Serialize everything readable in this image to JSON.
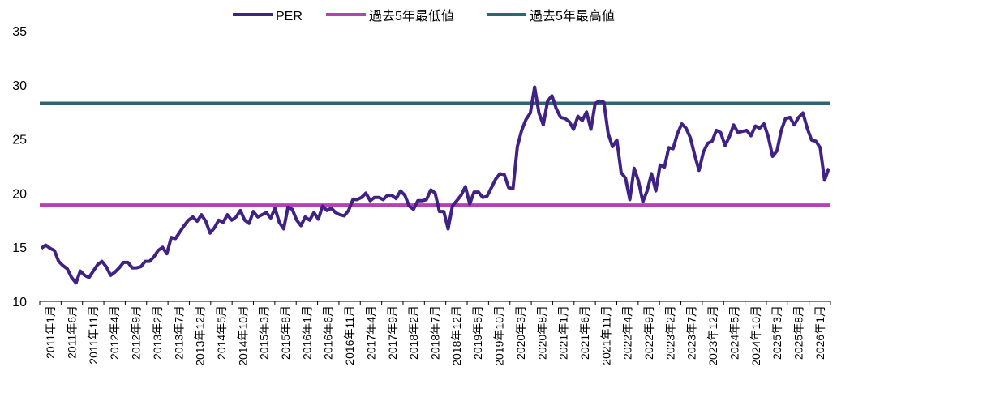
{
  "chart_data": {
    "type": "line",
    "title": "",
    "xlabel": "",
    "ylabel": "",
    "ylim": [
      10,
      35
    ],
    "yticks": [
      10,
      15,
      20,
      25,
      30,
      35
    ],
    "grid": false,
    "legend_position": "top",
    "x_tick_labels": [
      "2011年1月",
      "2011年6月",
      "2011年11月",
      "2012年4月",
      "2012年9月",
      "2013年2月",
      "2013年7月",
      "2013年12月",
      "2014年5月",
      "2014年10月",
      "2015年3月",
      "2015年8月",
      "2016年1月",
      "2016年6月",
      "2016年11月",
      "2017年4月",
      "2017年9月",
      "2018年2月",
      "2018年7月",
      "2018年12月",
      "2019年5月",
      "2019年10月",
      "2020年3月",
      "2020年8月",
      "2021年1月",
      "2021年6月",
      "2021年11月",
      "2022年4月",
      "2022年9月",
      "2023年2月",
      "2023年7月",
      "2023年12月",
      "2024年5月",
      "2024年10月",
      "2025年3月",
      "2025年8月",
      "2026年1月"
    ],
    "series": [
      {
        "name": "PER",
        "color": "#3f2284",
        "values": [
          14.9,
          15.2,
          14.9,
          14.7,
          13.7,
          13.3,
          13.0,
          12.2,
          11.7,
          12.8,
          12.4,
          12.2,
          12.8,
          13.4,
          13.7,
          13.2,
          12.4,
          12.7,
          13.1,
          13.6,
          13.6,
          13.1,
          13.1,
          13.2,
          13.7,
          13.7,
          14.1,
          14.7,
          15.0,
          14.4,
          15.9,
          15.8,
          16.4,
          17.0,
          17.5,
          17.8,
          17.4,
          18.0,
          17.4,
          16.3,
          16.8,
          17.5,
          17.3,
          18.0,
          17.5,
          17.8,
          18.4,
          17.5,
          17.2,
          18.3,
          17.8,
          18.0,
          18.2,
          17.7,
          18.6,
          17.3,
          16.7,
          18.7,
          18.5,
          17.5,
          17.0,
          17.8,
          17.5,
          18.2,
          17.6,
          18.8,
          18.4,
          18.6,
          18.2,
          18.0,
          17.9,
          18.4,
          19.4,
          19.4,
          19.6,
          20.0,
          19.3,
          19.6,
          19.6,
          19.4,
          19.8,
          19.8,
          19.5,
          20.2,
          19.8,
          18.8,
          18.5,
          19.3,
          19.3,
          19.4,
          20.3,
          20.0,
          18.3,
          18.3,
          16.7,
          18.8,
          19.3,
          19.8,
          20.6,
          19.0,
          20.1,
          20.1,
          19.6,
          19.7,
          20.5,
          21.3,
          21.8,
          21.7,
          20.5,
          20.4,
          24.3,
          25.8,
          26.8,
          27.4,
          29.8,
          27.4,
          26.3,
          28.5,
          29.0,
          27.8,
          27.0,
          26.9,
          26.6,
          25.9,
          27.1,
          26.7,
          27.5,
          25.9,
          28.3,
          28.5,
          28.4,
          25.5,
          24.3,
          24.9,
          21.9,
          21.4,
          19.4,
          22.3,
          21.1,
          19.2,
          20.2,
          21.8,
          20.2,
          22.6,
          22.4,
          24.2,
          24.1,
          25.5,
          26.4,
          26.0,
          25.1,
          23.5,
          22.1,
          23.8,
          24.6,
          24.8,
          25.8,
          25.6,
          24.4,
          25.2,
          26.3,
          25.6,
          25.7,
          25.8,
          25.3,
          26.2,
          26.0,
          26.4,
          25.2,
          23.4,
          23.9,
          25.8,
          26.9,
          27.0,
          26.3,
          27.0,
          27.4,
          26.0,
          24.9,
          24.8,
          24.2,
          21.2,
          22.3
        ]
      },
      {
        "name": "過去5年最低値",
        "color": "#b542b3",
        "values": [
          18.9
        ]
      },
      {
        "name": "過去5年最高値",
        "color": "#2e6474",
        "values": [
          28.3
        ]
      }
    ]
  }
}
